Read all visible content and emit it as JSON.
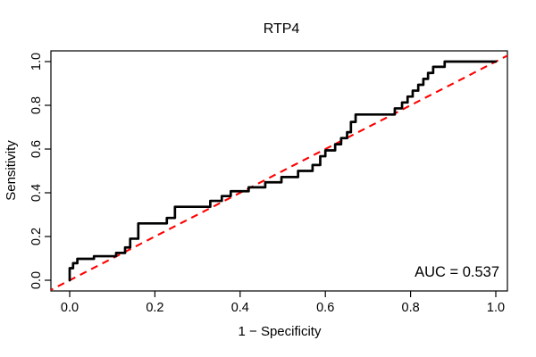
{
  "figure": {
    "background": "#ffffff",
    "box_color": "#000000"
  },
  "chart_data": {
    "type": "line",
    "chart_kind": "roc-curve",
    "title": "RTP4",
    "xlabel": "1 − Specificity",
    "ylabel": "Sensitivity",
    "xlim": [
      0.0,
      1.0
    ],
    "ylim": [
      0.0,
      1.0
    ],
    "x_ticks": [
      "0.0",
      "0.2",
      "0.4",
      "0.6",
      "0.8",
      "1.0"
    ],
    "y_ticks": [
      "0.0",
      "0.2",
      "0.4",
      "0.6",
      "0.8",
      "1.0"
    ],
    "grid": false,
    "legend": "none",
    "annotation": "AUC = 0.537",
    "auc": 0.537,
    "series": [
      {
        "name": "roc-step-curve",
        "style": "step-solid",
        "color": "#000000",
        "line_width": 2.7,
        "points": [
          [
            0.0,
            0.0
          ],
          [
            0.0,
            0.055
          ],
          [
            0.008,
            0.055
          ],
          [
            0.008,
            0.078
          ],
          [
            0.018,
            0.078
          ],
          [
            0.018,
            0.098
          ],
          [
            0.057,
            0.098
          ],
          [
            0.057,
            0.11
          ],
          [
            0.109,
            0.11
          ],
          [
            0.109,
            0.125
          ],
          [
            0.13,
            0.125
          ],
          [
            0.13,
            0.15
          ],
          [
            0.142,
            0.15
          ],
          [
            0.142,
            0.19
          ],
          [
            0.161,
            0.19
          ],
          [
            0.161,
            0.26
          ],
          [
            0.228,
            0.26
          ],
          [
            0.228,
            0.285
          ],
          [
            0.247,
            0.285
          ],
          [
            0.247,
            0.336
          ],
          [
            0.33,
            0.336
          ],
          [
            0.33,
            0.363
          ],
          [
            0.357,
            0.363
          ],
          [
            0.357,
            0.385
          ],
          [
            0.378,
            0.385
          ],
          [
            0.378,
            0.407
          ],
          [
            0.42,
            0.407
          ],
          [
            0.42,
            0.425
          ],
          [
            0.459,
            0.425
          ],
          [
            0.459,
            0.448
          ],
          [
            0.497,
            0.448
          ],
          [
            0.497,
            0.472
          ],
          [
            0.536,
            0.472
          ],
          [
            0.536,
            0.5
          ],
          [
            0.57,
            0.5
          ],
          [
            0.57,
            0.527
          ],
          [
            0.588,
            0.527
          ],
          [
            0.588,
            0.567
          ],
          [
            0.6,
            0.567
          ],
          [
            0.6,
            0.594
          ],
          [
            0.623,
            0.594
          ],
          [
            0.623,
            0.622
          ],
          [
            0.637,
            0.622
          ],
          [
            0.637,
            0.65
          ],
          [
            0.651,
            0.65
          ],
          [
            0.651,
            0.677
          ],
          [
            0.66,
            0.677
          ],
          [
            0.66,
            0.724
          ],
          [
            0.671,
            0.724
          ],
          [
            0.671,
            0.758
          ],
          [
            0.763,
            0.758
          ],
          [
            0.763,
            0.786
          ],
          [
            0.78,
            0.786
          ],
          [
            0.78,
            0.813
          ],
          [
            0.793,
            0.813
          ],
          [
            0.793,
            0.84
          ],
          [
            0.805,
            0.84
          ],
          [
            0.805,
            0.867
          ],
          [
            0.818,
            0.867
          ],
          [
            0.818,
            0.894
          ],
          [
            0.83,
            0.894
          ],
          [
            0.83,
            0.921
          ],
          [
            0.841,
            0.921
          ],
          [
            0.841,
            0.948
          ],
          [
            0.853,
            0.948
          ],
          [
            0.853,
            0.976
          ],
          [
            0.88,
            0.976
          ],
          [
            0.88,
            1.0
          ],
          [
            1.0,
            1.0
          ]
        ]
      },
      {
        "name": "chance-diagonal",
        "style": "dashed",
        "color": "#ff0000",
        "line_width": 2.1,
        "points": [
          [
            0.0,
            0.0
          ],
          [
            1.0,
            1.0
          ]
        ]
      }
    ]
  }
}
